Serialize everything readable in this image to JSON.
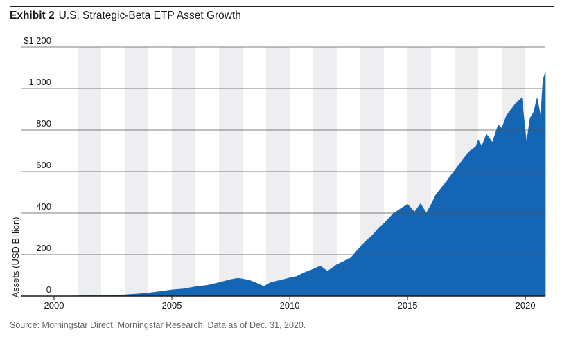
{
  "header": {
    "exhibit_label": "Exhibit 2",
    "title": "U.S. Strategic-Beta ETP Asset Growth"
  },
  "footer": {
    "source": "Source: Morningstar Direct, Morningstar Research. Data as of Dec. 31, 2020."
  },
  "colors": {
    "area_fill": "#1565b5",
    "area_top": "#1d70c2",
    "band": "#eeeef0",
    "grid": "#555555",
    "axis": "#1a1a1a"
  },
  "chart_data": {
    "type": "area",
    "title": "U.S. Strategic-Beta ETP Asset Growth",
    "xlabel": "",
    "ylabel": "Assets (USD Billion)",
    "xlim": [
      2000.0,
      2020.85
    ],
    "ylim": [
      0,
      1200
    ],
    "x_ticks": [
      2000,
      2005,
      2010,
      2015,
      2020
    ],
    "x_tick_labels": [
      "2000",
      "2005",
      "2010",
      "2015",
      "2020"
    ],
    "y_ticks": [
      0,
      200,
      400,
      600,
      800,
      1000,
      1200
    ],
    "y_tick_labels": [
      "0",
      "200",
      "400",
      "600",
      "800",
      "1,000",
      "$1,200"
    ],
    "grid": "horizontal",
    "alternating_year_bands": true,
    "series": [
      {
        "x": [
          2000.0,
          2000.5,
          2001.0,
          2001.5,
          2002.0,
          2002.5,
          2003.0,
          2003.5,
          2004.0,
          2004.5,
          2005.0,
          2005.5,
          2006.0,
          2006.5,
          2007.0,
          2007.5,
          2007.8,
          2008.0,
          2008.3,
          2008.6,
          2008.9,
          2009.2,
          2009.6,
          2010.0,
          2010.3,
          2010.6,
          2011.0,
          2011.3,
          2011.6,
          2011.8,
          2012.0,
          2012.3,
          2012.6,
          2012.9,
          2013.2,
          2013.5,
          2013.8,
          2014.0,
          2014.4,
          2014.8,
          2015.0,
          2015.3,
          2015.55,
          2015.8,
          2016.0,
          2016.2,
          2016.5,
          2016.8,
          2017.0,
          2017.3,
          2017.6,
          2017.9,
          2018.0,
          2018.15,
          2018.35,
          2018.6,
          2018.85,
          2019.0,
          2019.2,
          2019.4,
          2019.6,
          2019.85,
          2020.05,
          2020.2,
          2020.35,
          2020.5,
          2020.65,
          2020.75,
          2020.85
        ],
        "values": [
          0,
          0,
          1,
          2,
          3,
          4,
          6,
          10,
          15,
          22,
          30,
          35,
          45,
          52,
          65,
          80,
          86,
          83,
          76,
          62,
          47,
          66,
          76,
          88,
          95,
          112,
          130,
          145,
          120,
          135,
          152,
          168,
          185,
          225,
          262,
          292,
          330,
          350,
          398,
          428,
          442,
          405,
          445,
          400,
          440,
          488,
          530,
          575,
          605,
          650,
          695,
          720,
          752,
          722,
          780,
          740,
          825,
          808,
          870,
          900,
          930,
          955,
          738,
          858,
          885,
          955,
          865,
          1040,
          1080
        ]
      }
    ]
  }
}
